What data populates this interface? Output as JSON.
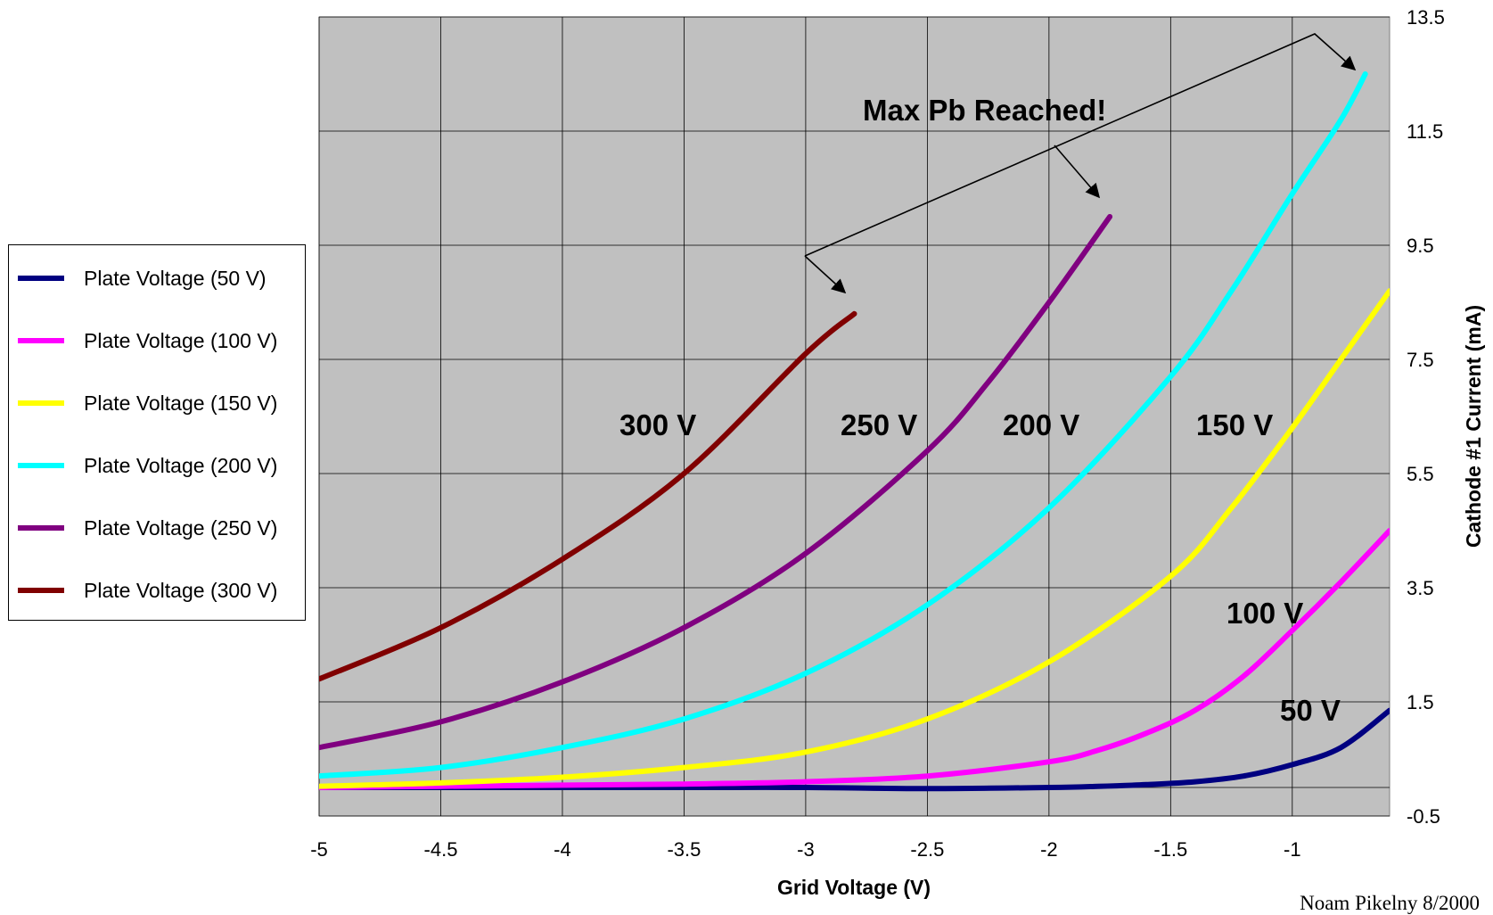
{
  "chart_data": {
    "type": "line",
    "xlabel": "Grid Voltage (V)",
    "ylabel": "Cathode #1 Current (mA)",
    "xlim": [
      -5,
      -0.6
    ],
    "ylim": [
      -0.5,
      13.5
    ],
    "xticks": [
      "-5",
      "-4.5",
      "-4",
      "-3.5",
      "-3",
      "-2.5",
      "-2",
      "-1.5",
      "-1"
    ],
    "yticks": [
      "-0.5",
      "1.5",
      "3.5",
      "5.5",
      "7.5",
      "9.5",
      "11.5",
      "13.5"
    ],
    "grid": true,
    "legend_placement": "left",
    "annotation": "Max Pb Reached!",
    "credit": "Noam  Pikelny 8/2000",
    "series": [
      {
        "name": "Plate Voltage (50 V)",
        "color": "#000080",
        "curve_label": "50 V",
        "x": [
          -5,
          -4.5,
          -4,
          -3.5,
          -3,
          -2.5,
          -2,
          -1.8,
          -1.6,
          -1.4,
          -1.2,
          -1,
          -0.8,
          -0.6
        ],
        "y": [
          0,
          0,
          0,
          0,
          0,
          -0.02,
          0,
          0.02,
          0.05,
          0.1,
          0.2,
          0.4,
          0.7,
          1.35
        ]
      },
      {
        "name": "Plate Voltage (100 V)",
        "color": "#FF00FF",
        "curve_label": "100 V",
        "x": [
          -5,
          -4.5,
          -4,
          -3.5,
          -3,
          -2.5,
          -2,
          -1.8,
          -1.6,
          -1.4,
          -1.2,
          -1,
          -0.8,
          -0.6
        ],
        "y": [
          0,
          0.02,
          0.04,
          0.06,
          0.1,
          0.2,
          0.45,
          0.65,
          0.95,
          1.35,
          1.95,
          2.75,
          3.6,
          4.5
        ]
      },
      {
        "name": "Plate Voltage (150 V)",
        "color": "#FFFF00",
        "curve_label": "150 V",
        "x": [
          -5,
          -4.5,
          -4,
          -3.5,
          -3,
          -2.5,
          -2,
          -1.5,
          -1.25,
          -1,
          -0.8,
          -0.6
        ],
        "y": [
          0.02,
          0.08,
          0.18,
          0.35,
          0.62,
          1.2,
          2.2,
          3.7,
          4.9,
          6.3,
          7.5,
          8.7
        ]
      },
      {
        "name": "Plate Voltage (200 V)",
        "color": "#00FFFF",
        "curve_label": "200 V",
        "x": [
          -5,
          -4.5,
          -4,
          -3.5,
          -3,
          -2.5,
          -2,
          -1.5,
          -1.25,
          -1,
          -0.8,
          -0.7
        ],
        "y": [
          0.2,
          0.35,
          0.7,
          1.2,
          2,
          3.2,
          4.9,
          7.2,
          8.7,
          10.4,
          11.7,
          12.5
        ]
      },
      {
        "name": "Plate Voltage (250 V)",
        "color": "#800080",
        "curve_label": "250 V",
        "x": [
          -5,
          -4.5,
          -4,
          -3.5,
          -3,
          -2.5,
          -2.25,
          -2,
          -1.75
        ],
        "y": [
          0.7,
          1.15,
          1.85,
          2.8,
          4.1,
          5.9,
          7.1,
          8.5,
          10
        ]
      },
      {
        "name": "Plate Voltage (300 V)",
        "color": "#800000",
        "curve_label": "300 V",
        "x": [
          -5,
          -4.5,
          -4,
          -3.5,
          -3,
          -2.8
        ],
        "y": [
          1.9,
          2.8,
          4,
          5.5,
          7.6,
          8.3
        ]
      }
    ]
  }
}
